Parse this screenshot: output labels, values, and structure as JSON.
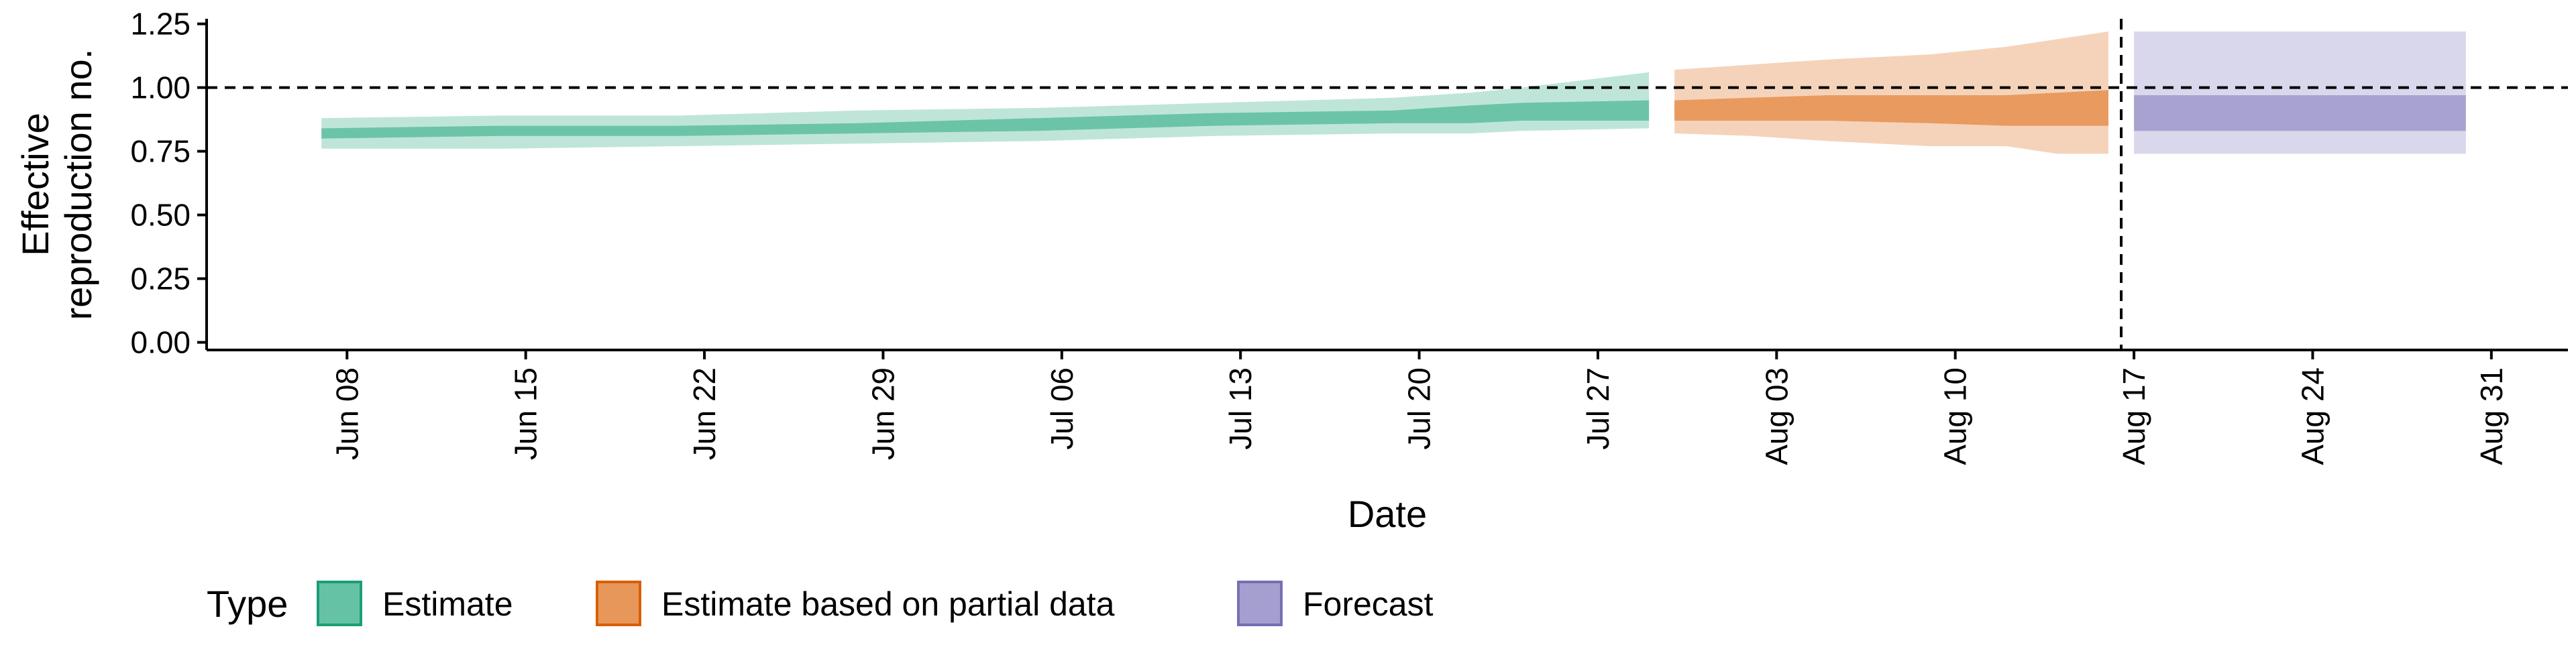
{
  "chart_data": {
    "type": "area",
    "xlabel": "Date",
    "ylabel_lines": [
      "Effective",
      "reproduction no."
    ],
    "x_ticks": [
      "2020-06-08",
      "2020-06-15",
      "2020-06-22",
      "2020-06-29",
      "2020-07-06",
      "2020-07-13",
      "2020-07-20",
      "2020-07-27",
      "2020-08-03",
      "2020-08-10",
      "2020-08-17",
      "2020-08-24",
      "2020-08-31"
    ],
    "x_tick_labels": [
      "Jun 08",
      "Jun 15",
      "Jun 22",
      "Jun 29",
      "Jul 06",
      "Jul 13",
      "Jul 20",
      "Jul 27",
      "Aug 03",
      "Aug 10",
      "Aug 17",
      "Aug 24",
      "Aug 31"
    ],
    "y_ticks": [
      0,
      0.25,
      0.5,
      0.75,
      1.0,
      1.25
    ],
    "y_tick_labels": [
      "0.00",
      "0.25",
      "0.50",
      "0.75",
      "1.00",
      "1.25"
    ],
    "ylim": [
      -0.03,
      1.27
    ],
    "xlim": [
      "2020-06-02T12:00",
      "2020-09-03"
    ],
    "hline": 1.0,
    "vline": "2020-08-16T12:00",
    "grid": false,
    "legend": {
      "title": "Type",
      "position": "bottom-left",
      "entries": [
        {
          "label": "Estimate",
          "fill": "#66c2a5",
          "border": "#1b9e77"
        },
        {
          "label": "Estimate based on partial data",
          "fill": "#e8975a",
          "border": "#d95f02"
        },
        {
          "label": "Forecast",
          "fill": "#a59fd0",
          "border": "#7570b3"
        }
      ]
    },
    "series": [
      {
        "name": "Estimate",
        "color": "#66c2a5",
        "x": [
          "2020-06-07",
          "2020-06-14",
          "2020-06-21",
          "2020-06-28",
          "2020-07-05",
          "2020-07-12",
          "2020-07-19",
          "2020-07-22",
          "2020-07-24",
          "2020-07-29"
        ],
        "outer_lower": [
          0.76,
          0.76,
          0.77,
          0.78,
          0.79,
          0.81,
          0.82,
          0.82,
          0.83,
          0.84
        ],
        "outer_upper": [
          0.88,
          0.89,
          0.89,
          0.91,
          0.92,
          0.94,
          0.96,
          0.98,
          1.0,
          1.06
        ],
        "inner_lower": [
          0.8,
          0.81,
          0.81,
          0.82,
          0.83,
          0.85,
          0.86,
          0.86,
          0.87,
          0.87
        ],
        "inner_upper": [
          0.84,
          0.85,
          0.85,
          0.86,
          0.88,
          0.9,
          0.91,
          0.93,
          0.94,
          0.95
        ]
      },
      {
        "name": "Estimate based on partial data",
        "color": "#e8975a",
        "x": [
          "2020-07-30",
          "2020-08-02",
          "2020-08-05",
          "2020-08-09",
          "2020-08-12",
          "2020-08-14",
          "2020-08-16"
        ],
        "outer_lower": [
          0.82,
          0.81,
          0.79,
          0.77,
          0.77,
          0.74,
          0.74
        ],
        "outer_upper": [
          1.07,
          1.09,
          1.11,
          1.13,
          1.16,
          1.19,
          1.22
        ],
        "inner_lower": [
          0.87,
          0.87,
          0.87,
          0.86,
          0.85,
          0.85,
          0.85
        ],
        "inner_upper": [
          0.95,
          0.96,
          0.97,
          0.97,
          0.97,
          0.98,
          0.99
        ]
      },
      {
        "name": "Forecast",
        "color": "#a59fd0",
        "x": [
          "2020-08-17",
          "2020-08-30"
        ],
        "outer_lower": [
          0.74,
          0.74
        ],
        "outer_upper": [
          1.22,
          1.22
        ],
        "inner_lower": [
          0.83,
          0.83
        ],
        "inner_upper": [
          0.97,
          0.97
        ]
      }
    ]
  }
}
